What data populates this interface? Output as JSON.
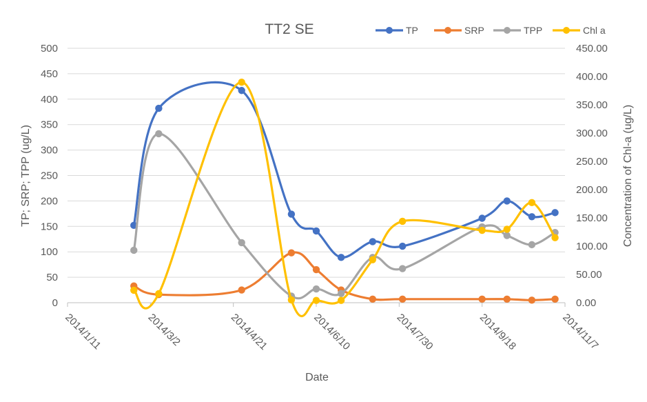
{
  "chart_data": {
    "type": "line",
    "title": "TT2 SE",
    "xlabel": "Date",
    "ylabel": "TP; SRP; TPP (ug/L)",
    "y2label": "Concentration of Chl-a (ug/L)",
    "x_ticks": [
      "2014/1/11",
      "2014/3/2",
      "2014/4/21",
      "2014/6/10",
      "2014/7/30",
      "2014/9/18",
      "2014/11/7"
    ],
    "xlim": [
      "2014/1/11",
      "2014/11/7"
    ],
    "ylim": [
      0,
      500
    ],
    "y_ticks": [
      "0",
      "50",
      "100",
      "150",
      "200",
      "250",
      "300",
      "350",
      "400",
      "450",
      "500"
    ],
    "y2lim": [
      0,
      450
    ],
    "y2_ticks": [
      "0.00",
      "50.00",
      "100.00",
      "150.00",
      "200.00",
      "250.00",
      "300.00",
      "350.00",
      "400.00",
      "450.00"
    ],
    "grid": true,
    "legend_position": "top-right",
    "series": [
      {
        "name": "TP",
        "axis": "left",
        "color": "#4472c4",
        "x": [
          "2014/2/20",
          "2014/3/7",
          "2014/4/26",
          "2014/5/26",
          "2014/6/10",
          "2014/6/25",
          "2014/7/14",
          "2014/8/1",
          "2014/9/18",
          "2014/10/3",
          "2014/10/18",
          "2014/11/1"
        ],
        "y": [
          152,
          382,
          417,
          174,
          141,
          89,
          120,
          111,
          166,
          200,
          169,
          177
        ]
      },
      {
        "name": "SRP",
        "axis": "left",
        "color": "#ed7d31",
        "x": [
          "2014/2/20",
          "2014/3/7",
          "2014/4/26",
          "2014/5/26",
          "2014/6/10",
          "2014/6/25",
          "2014/7/14",
          "2014/8/1",
          "2014/9/18",
          "2014/10/3",
          "2014/10/18",
          "2014/11/1"
        ],
        "y": [
          33,
          16,
          25,
          98,
          65,
          25,
          7,
          7,
          7,
          7,
          5,
          7
        ]
      },
      {
        "name": "TPP",
        "axis": "left",
        "color": "#a5a5a5",
        "x": [
          "2014/2/20",
          "2014/3/7",
          "2014/4/26",
          "2014/5/26",
          "2014/6/10",
          "2014/6/25",
          "2014/7/14",
          "2014/8/1",
          "2014/9/18",
          "2014/10/3",
          "2014/10/18",
          "2014/11/1"
        ],
        "y": [
          103,
          332,
          118,
          13,
          27,
          18,
          89,
          67,
          149,
          132,
          114,
          138
        ]
      },
      {
        "name": "Chl a",
        "axis": "right",
        "color": "#ffc000",
        "x": [
          "2014/2/20",
          "2014/3/7",
          "2014/4/26",
          "2014/5/26",
          "2014/6/10",
          "2014/6/25",
          "2014/7/14",
          "2014/8/1",
          "2014/9/18",
          "2014/10/3",
          "2014/10/18",
          "2014/11/1"
        ],
        "y": [
          22,
          16,
          390,
          5,
          4,
          4,
          76,
          144,
          128,
          130,
          177,
          115
        ]
      }
    ]
  }
}
